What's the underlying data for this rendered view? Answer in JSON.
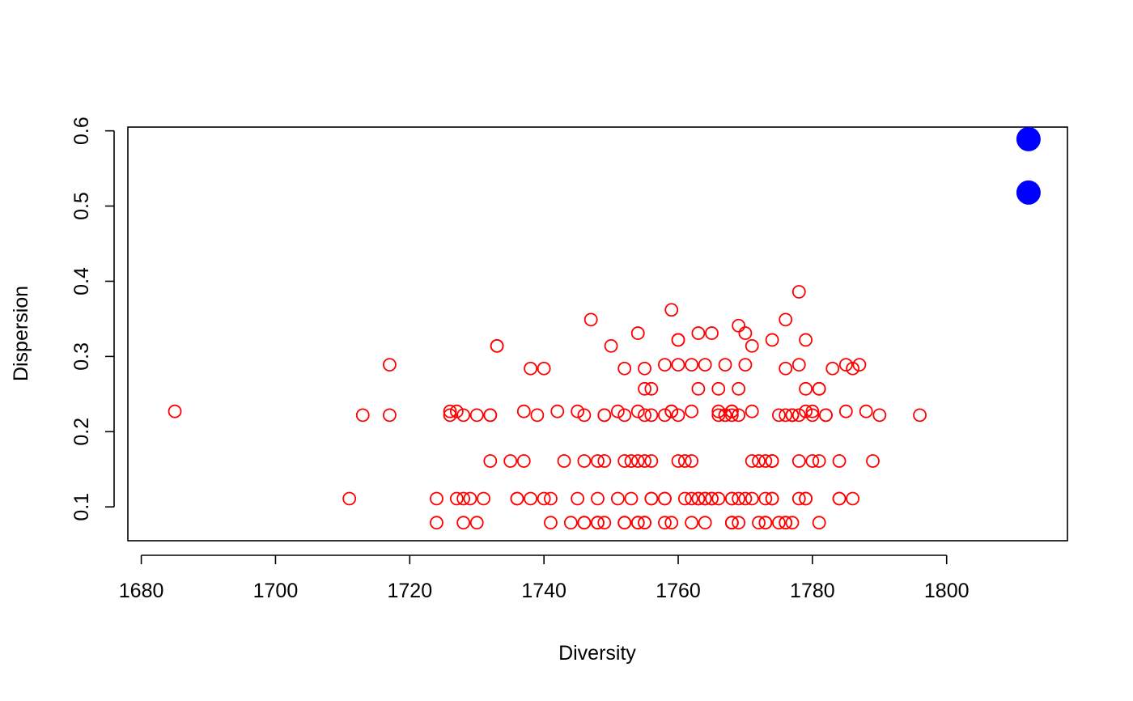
{
  "chart_data": {
    "type": "scatter",
    "title": "",
    "xlabel": "Diversity",
    "ylabel": "Dispersion",
    "xlim": [
      1678,
      1818
    ],
    "ylim": [
      0.055,
      0.605
    ],
    "xticks": [
      1680,
      1700,
      1720,
      1740,
      1760,
      1780,
      1800
    ],
    "yticks": [
      0.1,
      0.2,
      0.3,
      0.4,
      0.5,
      0.6
    ],
    "xtick_labels": [
      "1680",
      "1700",
      "1720",
      "1740",
      "1760",
      "1780",
      "1800"
    ],
    "ytick_labels": [
      "0.1",
      "0.2",
      "0.3",
      "0.4",
      "0.5",
      "0.6"
    ],
    "grid": false,
    "legend": "none",
    "series": [
      {
        "marker": "open-circle",
        "color": "#ff0000",
        "points": [
          [
            1685,
            0.227
          ],
          [
            1711,
            0.111
          ],
          [
            1713,
            0.222
          ],
          [
            1717,
            0.289
          ],
          [
            1717,
            0.222
          ],
          [
            1724,
            0.079
          ],
          [
            1724,
            0.111
          ],
          [
            1726,
            0.227
          ],
          [
            1726,
            0.222
          ],
          [
            1727,
            0.111
          ],
          [
            1727,
            0.227
          ],
          [
            1728,
            0.222
          ],
          [
            1728,
            0.111
          ],
          [
            1728,
            0.079
          ],
          [
            1729,
            0.111
          ],
          [
            1730,
            0.222
          ],
          [
            1730,
            0.079
          ],
          [
            1731,
            0.111
          ],
          [
            1732,
            0.222
          ],
          [
            1732,
            0.161
          ],
          [
            1732,
            0.222
          ],
          [
            1733,
            0.314
          ],
          [
            1733,
            0.314
          ],
          [
            1735,
            0.161
          ],
          [
            1736,
            0.111
          ],
          [
            1736,
            0.111
          ],
          [
            1737,
            0.227
          ],
          [
            1737,
            0.161
          ],
          [
            1738,
            0.284
          ],
          [
            1738,
            0.111
          ],
          [
            1739,
            0.222
          ],
          [
            1740,
            0.284
          ],
          [
            1740,
            0.111
          ],
          [
            1741,
            0.111
          ],
          [
            1741,
            0.079
          ],
          [
            1742,
            0.227
          ],
          [
            1743,
            0.161
          ],
          [
            1744,
            0.079
          ],
          [
            1745,
            0.111
          ],
          [
            1745,
            0.227
          ],
          [
            1746,
            0.161
          ],
          [
            1746,
            0.079
          ],
          [
            1746,
            0.079
          ],
          [
            1746,
            0.222
          ],
          [
            1747,
            0.349
          ],
          [
            1748,
            0.079
          ],
          [
            1748,
            0.079
          ],
          [
            1748,
            0.111
          ],
          [
            1748,
            0.161
          ],
          [
            1749,
            0.161
          ],
          [
            1749,
            0.222
          ],
          [
            1749,
            0.222
          ],
          [
            1749,
            0.079
          ],
          [
            1750,
            0.314
          ],
          [
            1751,
            0.227
          ],
          [
            1751,
            0.111
          ],
          [
            1752,
            0.284
          ],
          [
            1752,
            0.161
          ],
          [
            1752,
            0.079
          ],
          [
            1752,
            0.222
          ],
          [
            1752,
            0.079
          ],
          [
            1753,
            0.161
          ],
          [
            1753,
            0.111
          ],
          [
            1754,
            0.161
          ],
          [
            1754,
            0.227
          ],
          [
            1754,
            0.079
          ],
          [
            1754,
            0.331
          ],
          [
            1754,
            0.079
          ],
          [
            1755,
            0.222
          ],
          [
            1755,
            0.257
          ],
          [
            1755,
            0.284
          ],
          [
            1755,
            0.161
          ],
          [
            1755,
            0.079
          ],
          [
            1755,
            0.079
          ],
          [
            1756,
            0.222
          ],
          [
            1756,
            0.161
          ],
          [
            1756,
            0.111
          ],
          [
            1756,
            0.257
          ],
          [
            1756,
            0.111
          ],
          [
            1758,
            0.079
          ],
          [
            1758,
            0.222
          ],
          [
            1758,
            0.289
          ],
          [
            1758,
            0.111
          ],
          [
            1758,
            0.111
          ],
          [
            1759,
            0.227
          ],
          [
            1759,
            0.362
          ],
          [
            1759,
            0.227
          ],
          [
            1759,
            0.079
          ],
          [
            1760,
            0.222
          ],
          [
            1760,
            0.161
          ],
          [
            1760,
            0.322
          ],
          [
            1760,
            0.322
          ],
          [
            1760,
            0.289
          ],
          [
            1761,
            0.111
          ],
          [
            1761,
            0.161
          ],
          [
            1762,
            0.111
          ],
          [
            1762,
            0.227
          ],
          [
            1762,
            0.079
          ],
          [
            1762,
            0.289
          ],
          [
            1762,
            0.161
          ],
          [
            1763,
            0.331
          ],
          [
            1763,
            0.257
          ],
          [
            1763,
            0.111
          ],
          [
            1763,
            0.111
          ],
          [
            1764,
            0.079
          ],
          [
            1764,
            0.289
          ],
          [
            1764,
            0.111
          ],
          [
            1764,
            0.111
          ],
          [
            1765,
            0.331
          ],
          [
            1765,
            0.111
          ],
          [
            1765,
            0.111
          ],
          [
            1766,
            0.227
          ],
          [
            1766,
            0.257
          ],
          [
            1766,
            0.111
          ],
          [
            1766,
            0.222
          ],
          [
            1767,
            0.222
          ],
          [
            1767,
            0.289
          ],
          [
            1767,
            0.222
          ],
          [
            1768,
            0.111
          ],
          [
            1768,
            0.227
          ],
          [
            1768,
            0.079
          ],
          [
            1768,
            0.111
          ],
          [
            1768,
            0.079
          ],
          [
            1768,
            0.222
          ],
          [
            1768,
            0.227
          ],
          [
            1768,
            0.079
          ],
          [
            1769,
            0.111
          ],
          [
            1769,
            0.079
          ],
          [
            1769,
            0.222
          ],
          [
            1769,
            0.341
          ],
          [
            1769,
            0.257
          ],
          [
            1770,
            0.111
          ],
          [
            1770,
            0.331
          ],
          [
            1770,
            0.289
          ],
          [
            1771,
            0.227
          ],
          [
            1771,
            0.161
          ],
          [
            1771,
            0.111
          ],
          [
            1771,
            0.314
          ],
          [
            1772,
            0.079
          ],
          [
            1772,
            0.161
          ],
          [
            1773,
            0.079
          ],
          [
            1773,
            0.161
          ],
          [
            1773,
            0.079
          ],
          [
            1773,
            0.111
          ],
          [
            1774,
            0.161
          ],
          [
            1774,
            0.111
          ],
          [
            1774,
            0.322
          ],
          [
            1774,
            0.111
          ],
          [
            1774,
            0.161
          ],
          [
            1775,
            0.079
          ],
          [
            1775,
            0.222
          ],
          [
            1776,
            0.349
          ],
          [
            1776,
            0.284
          ],
          [
            1776,
            0.222
          ],
          [
            1776,
            0.079
          ],
          [
            1776,
            0.079
          ],
          [
            1777,
            0.222
          ],
          [
            1777,
            0.079
          ],
          [
            1777,
            0.222
          ],
          [
            1777,
            0.222
          ],
          [
            1778,
            0.222
          ],
          [
            1778,
            0.289
          ],
          [
            1778,
            0.386
          ],
          [
            1778,
            0.161
          ],
          [
            1778,
            0.111
          ],
          [
            1779,
            0.227
          ],
          [
            1779,
            0.111
          ],
          [
            1779,
            0.111
          ],
          [
            1779,
            0.322
          ],
          [
            1779,
            0.257
          ],
          [
            1780,
            0.227
          ],
          [
            1780,
            0.161
          ],
          [
            1780,
            0.222
          ],
          [
            1781,
            0.257
          ],
          [
            1781,
            0.257
          ],
          [
            1781,
            0.161
          ],
          [
            1781,
            0.079
          ],
          [
            1782,
            0.222
          ],
          [
            1782,
            0.222
          ],
          [
            1783,
            0.284
          ],
          [
            1784,
            0.161
          ],
          [
            1784,
            0.111
          ],
          [
            1784,
            0.111
          ],
          [
            1785,
            0.289
          ],
          [
            1785,
            0.227
          ],
          [
            1786,
            0.284
          ],
          [
            1786,
            0.111
          ],
          [
            1787,
            0.289
          ],
          [
            1788,
            0.227
          ],
          [
            1789,
            0.161
          ],
          [
            1790,
            0.222
          ],
          [
            1796,
            0.222
          ]
        ]
      },
      {
        "marker": "filled-circle",
        "color": "#0000ff",
        "points": [
          [
            1812.2,
            0.589
          ],
          [
            1812.2,
            0.518
          ]
        ]
      }
    ]
  }
}
